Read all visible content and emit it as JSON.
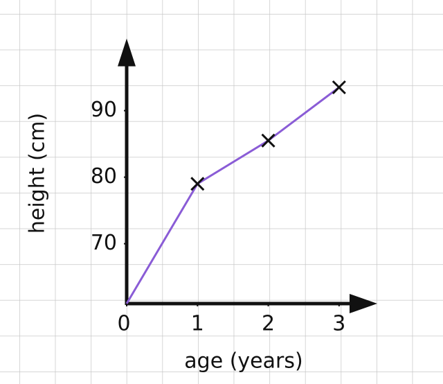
{
  "chart_data": {
    "type": "line",
    "x_label": "age (years)",
    "y_label": "height (cm)",
    "x": [
      0,
      1,
      2,
      3
    ],
    "values": [
      61,
      79,
      85.5,
      93.5
    ],
    "color": "#8a5cd6",
    "xlim": [
      0,
      3.5
    ],
    "xticks": [
      0,
      1,
      2,
      3
    ],
    "ylim": [
      61,
      100
    ],
    "yticks": [
      70,
      80,
      90
    ]
  }
}
